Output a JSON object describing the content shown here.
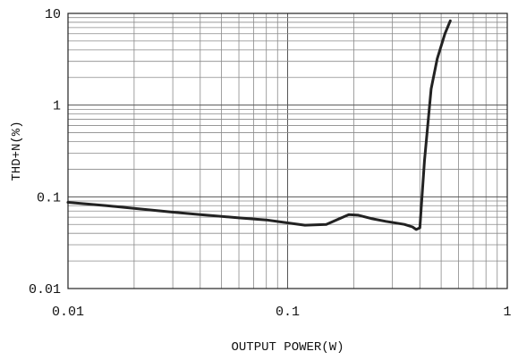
{
  "chart_data": {
    "type": "line",
    "title": "",
    "xlabel": "OUTPUT POWER(W)",
    "ylabel": "THD+N(%)",
    "x_scale": "log",
    "y_scale": "log",
    "xlim": [
      0.01,
      1
    ],
    "ylim": [
      0.01,
      10
    ],
    "x_tick_labels": [
      "0.01",
      "0.1",
      "1"
    ],
    "y_tick_labels": [
      "0.01",
      "0.1",
      "1",
      "10"
    ],
    "x_ticks": [
      0.01,
      0.1,
      1
    ],
    "y_ticks": [
      0.01,
      0.1,
      1,
      10
    ],
    "grid": true,
    "legend": "none",
    "series": [
      {
        "color": "#222222",
        "x": [
          0.01,
          0.015,
          0.02,
          0.03,
          0.04,
          0.06,
          0.08,
          0.1,
          0.12,
          0.15,
          0.17,
          0.19,
          0.21,
          0.24,
          0.28,
          0.34,
          0.37,
          0.385,
          0.4,
          0.42,
          0.45,
          0.48,
          0.52,
          0.55
        ],
        "y": [
          0.087,
          0.08,
          0.075,
          0.068,
          0.064,
          0.059,
          0.056,
          0.052,
          0.049,
          0.05,
          0.057,
          0.064,
          0.063,
          0.058,
          0.054,
          0.05,
          0.047,
          0.044,
          0.046,
          0.25,
          1.5,
          3.2,
          6.0,
          8.3
        ]
      }
    ]
  }
}
